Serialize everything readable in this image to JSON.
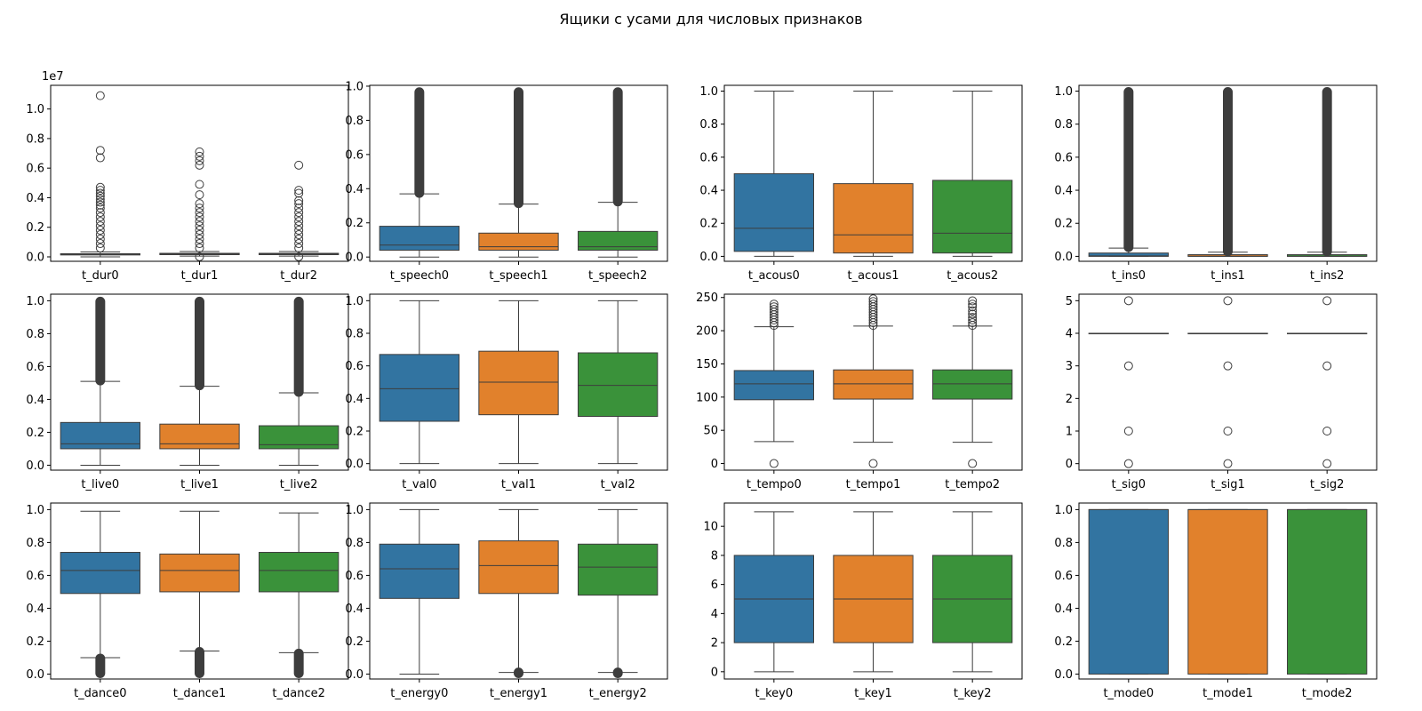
{
  "title": "Ящики с усами для числовых признаков",
  "palette": [
    "#3274a1",
    "#e1812c",
    "#3a923a"
  ],
  "chart_data": [
    {
      "type": "box",
      "categories": [
        "t_dur0",
        "t_dur1",
        "t_dur2"
      ],
      "ylim": [
        -0.3,
        11.6
      ],
      "yticks": [
        0,
        0.2,
        0.4,
        0.6,
        0.8,
        1.0
      ],
      "ytick_scale": 10,
      "offset_text": "1e7",
      "boxes": [
        {
          "whislo": 0,
          "q1": 0.13,
          "med": 0.17,
          "q3": 0.21,
          "whishi": 0.33,
          "fliers": [
            10.9,
            7.2,
            6.7,
            4.7,
            4.5,
            4.3,
            4.1,
            3.9,
            3.7,
            3.5,
            3.3,
            3.0,
            2.7,
            2.4,
            2.1,
            1.8,
            1.5,
            1.2,
            0.9,
            0.6
          ]
        },
        {
          "whislo": 0.05,
          "q1": 0.15,
          "med": 0.19,
          "q3": 0.24,
          "whishi": 0.36,
          "fliers": [
            7.1,
            6.8,
            6.5,
            6.2,
            4.9,
            4.2,
            3.6,
            3.3,
            3.0,
            2.7,
            2.4,
            2.1,
            1.8,
            1.5,
            1.2,
            0.9,
            0.6,
            0.01
          ]
        },
        {
          "whislo": 0.05,
          "q1": 0.15,
          "med": 0.19,
          "q3": 0.24,
          "whishi": 0.36,
          "fliers": [
            6.2,
            4.5,
            4.3,
            3.8,
            3.6,
            3.3,
            3.0,
            2.7,
            2.4,
            2.1,
            1.8,
            1.5,
            1.2,
            0.9,
            0.6,
            0.01
          ]
        }
      ]
    },
    {
      "type": "box",
      "categories": [
        "t_speech0",
        "t_speech1",
        "t_speech2"
      ],
      "ylim": [
        -0.025,
        1.005
      ],
      "yticks": [
        0,
        0.2,
        0.4,
        0.6,
        0.8,
        1.0
      ],
      "boxes": [
        {
          "whislo": 0,
          "q1": 0.04,
          "med": 0.07,
          "q3": 0.18,
          "whishi": 0.37,
          "fliers": [],
          "flier_band": [
            0.37,
            0.97
          ]
        },
        {
          "whislo": 0,
          "q1": 0.04,
          "med": 0.06,
          "q3": 0.14,
          "whishi": 0.31,
          "fliers": [],
          "flier_band": [
            0.31,
            0.97
          ]
        },
        {
          "whislo": 0,
          "q1": 0.04,
          "med": 0.06,
          "q3": 0.15,
          "whishi": 0.32,
          "fliers": [],
          "flier_band": [
            0.32,
            0.97
          ]
        }
      ]
    },
    {
      "type": "box",
      "categories": [
        "t_acous0",
        "t_acous1",
        "t_acous2"
      ],
      "ylim": [
        -0.03,
        1.035
      ],
      "yticks": [
        0,
        0.2,
        0.4,
        0.6,
        0.8,
        1.0
      ],
      "boxes": [
        {
          "whislo": 0,
          "q1": 0.03,
          "med": 0.17,
          "q3": 0.5,
          "whishi": 1.0,
          "fliers": []
        },
        {
          "whislo": 0,
          "q1": 0.02,
          "med": 0.13,
          "q3": 0.44,
          "whishi": 1.0,
          "fliers": []
        },
        {
          "whislo": 0,
          "q1": 0.02,
          "med": 0.14,
          "q3": 0.46,
          "whishi": 1.0,
          "fliers": []
        }
      ]
    },
    {
      "type": "box",
      "categories": [
        "t_ins0",
        "t_ins1",
        "t_ins2"
      ],
      "ylim": [
        -0.03,
        1.035
      ],
      "yticks": [
        0,
        0.2,
        0.4,
        0.6,
        0.8,
        1.0
      ],
      "boxes": [
        {
          "whislo": 0,
          "q1": 0,
          "med": 0.003,
          "q3": 0.02,
          "whishi": 0.05,
          "fliers": [],
          "flier_band": [
            0.05,
            1.0
          ]
        },
        {
          "whislo": 0,
          "q1": 0,
          "med": 0.001,
          "q3": 0.01,
          "whishi": 0.025,
          "fliers": [],
          "flier_band": [
            0.025,
            1.0
          ]
        },
        {
          "whislo": 0,
          "q1": 0,
          "med": 0.001,
          "q3": 0.01,
          "whishi": 0.025,
          "fliers": [],
          "flier_band": [
            0.025,
            1.0
          ]
        }
      ]
    },
    {
      "type": "box",
      "categories": [
        "t_live0",
        "t_live1",
        "t_live2"
      ],
      "ylim": [
        -0.03,
        1.04
      ],
      "yticks": [
        0,
        0.2,
        0.4,
        0.6,
        0.8,
        1.0
      ],
      "boxes": [
        {
          "whislo": 0,
          "q1": 0.1,
          "med": 0.13,
          "q3": 0.26,
          "whishi": 0.51,
          "fliers": [],
          "flier_band": [
            0.51,
            1.0
          ]
        },
        {
          "whislo": 0,
          "q1": 0.1,
          "med": 0.13,
          "q3": 0.25,
          "whishi": 0.48,
          "fliers": [],
          "flier_band": [
            0.48,
            1.0
          ]
        },
        {
          "whislo": 0,
          "q1": 0.1,
          "med": 0.125,
          "q3": 0.24,
          "whishi": 0.44,
          "fliers": [],
          "flier_band": [
            0.44,
            1.0
          ]
        }
      ]
    },
    {
      "type": "box",
      "categories": [
        "t_val0",
        "t_val1",
        "t_val2"
      ],
      "ylim": [
        -0.04,
        1.04
      ],
      "yticks": [
        0,
        0.2,
        0.4,
        0.6,
        0.8,
        1.0
      ],
      "boxes": [
        {
          "whislo": 0,
          "q1": 0.26,
          "med": 0.46,
          "q3": 0.67,
          "whishi": 1.0,
          "fliers": []
        },
        {
          "whislo": 0,
          "q1": 0.3,
          "med": 0.5,
          "q3": 0.69,
          "whishi": 1.0,
          "fliers": []
        },
        {
          "whislo": 0,
          "q1": 0.29,
          "med": 0.48,
          "q3": 0.68,
          "whishi": 1.0,
          "fliers": []
        }
      ]
    },
    {
      "type": "box",
      "categories": [
        "t_tempo0",
        "t_tempo1",
        "t_tempo2"
      ],
      "ylim": [
        -10,
        255
      ],
      "yticks": [
        0,
        50,
        100,
        150,
        200,
        250
      ],
      "boxes": [
        {
          "whislo": 33,
          "q1": 96,
          "med": 120,
          "q3": 140,
          "whishi": 206,
          "fliers": [
            240,
            236,
            232,
            228,
            224,
            220,
            216,
            212,
            208,
            0
          ]
        },
        {
          "whislo": 32,
          "q1": 97,
          "med": 120,
          "q3": 141,
          "whishi": 207,
          "fliers": [
            248,
            244,
            240,
            236,
            232,
            228,
            224,
            220,
            216,
            212,
            208,
            0
          ]
        },
        {
          "whislo": 32,
          "q1": 97,
          "med": 120,
          "q3": 141,
          "whishi": 207,
          "fliers": [
            245,
            240,
            236,
            230,
            225,
            220,
            216,
            212,
            208,
            0
          ]
        }
      ]
    },
    {
      "type": "box",
      "categories": [
        "t_sig0",
        "t_sig1",
        "t_sig2"
      ],
      "ylim": [
        -0.2,
        5.2
      ],
      "yticks": [
        0,
        1,
        2,
        3,
        4,
        5
      ],
      "boxes": [
        {
          "whislo": 4,
          "q1": 4,
          "med": 4,
          "q3": 4,
          "whishi": 4,
          "fliers": [
            5,
            3,
            1,
            0
          ]
        },
        {
          "whislo": 4,
          "q1": 4,
          "med": 4,
          "q3": 4,
          "whishi": 4,
          "fliers": [
            5,
            3,
            1,
            0
          ]
        },
        {
          "whislo": 4,
          "q1": 4,
          "med": 4,
          "q3": 4,
          "whishi": 4,
          "fliers": [
            5,
            3,
            1,
            0
          ]
        }
      ]
    },
    {
      "type": "box",
      "categories": [
        "t_dance0",
        "t_dance1",
        "t_dance2"
      ],
      "ylim": [
        -0.03,
        1.04
      ],
      "yticks": [
        0,
        0.2,
        0.4,
        0.6,
        0.8,
        1.0
      ],
      "boxes": [
        {
          "whislo": 0.1,
          "q1": 0.49,
          "med": 0.63,
          "q3": 0.74,
          "whishi": 0.99,
          "fliers": [],
          "flier_band": [
            0,
            0.1
          ]
        },
        {
          "whislo": 0.14,
          "q1": 0.5,
          "med": 0.63,
          "q3": 0.73,
          "whishi": 0.99,
          "fliers": [],
          "flier_band": [
            0,
            0.14
          ]
        },
        {
          "whislo": 0.13,
          "q1": 0.5,
          "med": 0.63,
          "q3": 0.74,
          "whishi": 0.98,
          "fliers": [],
          "flier_band": [
            0,
            0.13
          ]
        }
      ]
    },
    {
      "type": "box",
      "categories": [
        "t_energy0",
        "t_energy1",
        "t_energy2"
      ],
      "ylim": [
        -0.03,
        1.04
      ],
      "yticks": [
        0,
        0.2,
        0.4,
        0.6,
        0.8,
        1.0
      ],
      "boxes": [
        {
          "whislo": 0,
          "q1": 0.46,
          "med": 0.64,
          "q3": 0.79,
          "whishi": 1.0,
          "fliers": []
        },
        {
          "whislo": 0.01,
          "q1": 0.49,
          "med": 0.66,
          "q3": 0.81,
          "whishi": 1.0,
          "fliers": [],
          "flier_band": [
            0,
            0.015
          ]
        },
        {
          "whislo": 0.01,
          "q1": 0.48,
          "med": 0.65,
          "q3": 0.79,
          "whishi": 1.0,
          "fliers": [],
          "flier_band": [
            0,
            0.015
          ]
        }
      ]
    },
    {
      "type": "box",
      "categories": [
        "t_key0",
        "t_key1",
        "t_key2"
      ],
      "ylim": [
        -0.5,
        11.6
      ],
      "yticks": [
        0,
        2,
        4,
        6,
        8,
        10
      ],
      "boxes": [
        {
          "whislo": 0,
          "q1": 2,
          "med": 5,
          "q3": 8,
          "whishi": 11,
          "fliers": []
        },
        {
          "whislo": 0,
          "q1": 2,
          "med": 5,
          "q3": 8,
          "whishi": 11,
          "fliers": []
        },
        {
          "whislo": 0,
          "q1": 2,
          "med": 5,
          "q3": 8,
          "whishi": 11,
          "fliers": []
        }
      ]
    },
    {
      "type": "box",
      "categories": [
        "t_mode0",
        "t_mode1",
        "t_mode2"
      ],
      "ylim": [
        -0.03,
        1.04
      ],
      "yticks": [
        0,
        0.2,
        0.4,
        0.6,
        0.8,
        1.0
      ],
      "boxes": [
        {
          "whislo": 0,
          "q1": 0,
          "med": 1,
          "q3": 1,
          "whishi": 1,
          "fliers": []
        },
        {
          "whislo": 0,
          "q1": 0,
          "med": 1,
          "q3": 1,
          "whishi": 1,
          "fliers": []
        },
        {
          "whislo": 0,
          "q1": 0,
          "med": 1,
          "q3": 1,
          "whishi": 1,
          "fliers": []
        }
      ]
    }
  ]
}
